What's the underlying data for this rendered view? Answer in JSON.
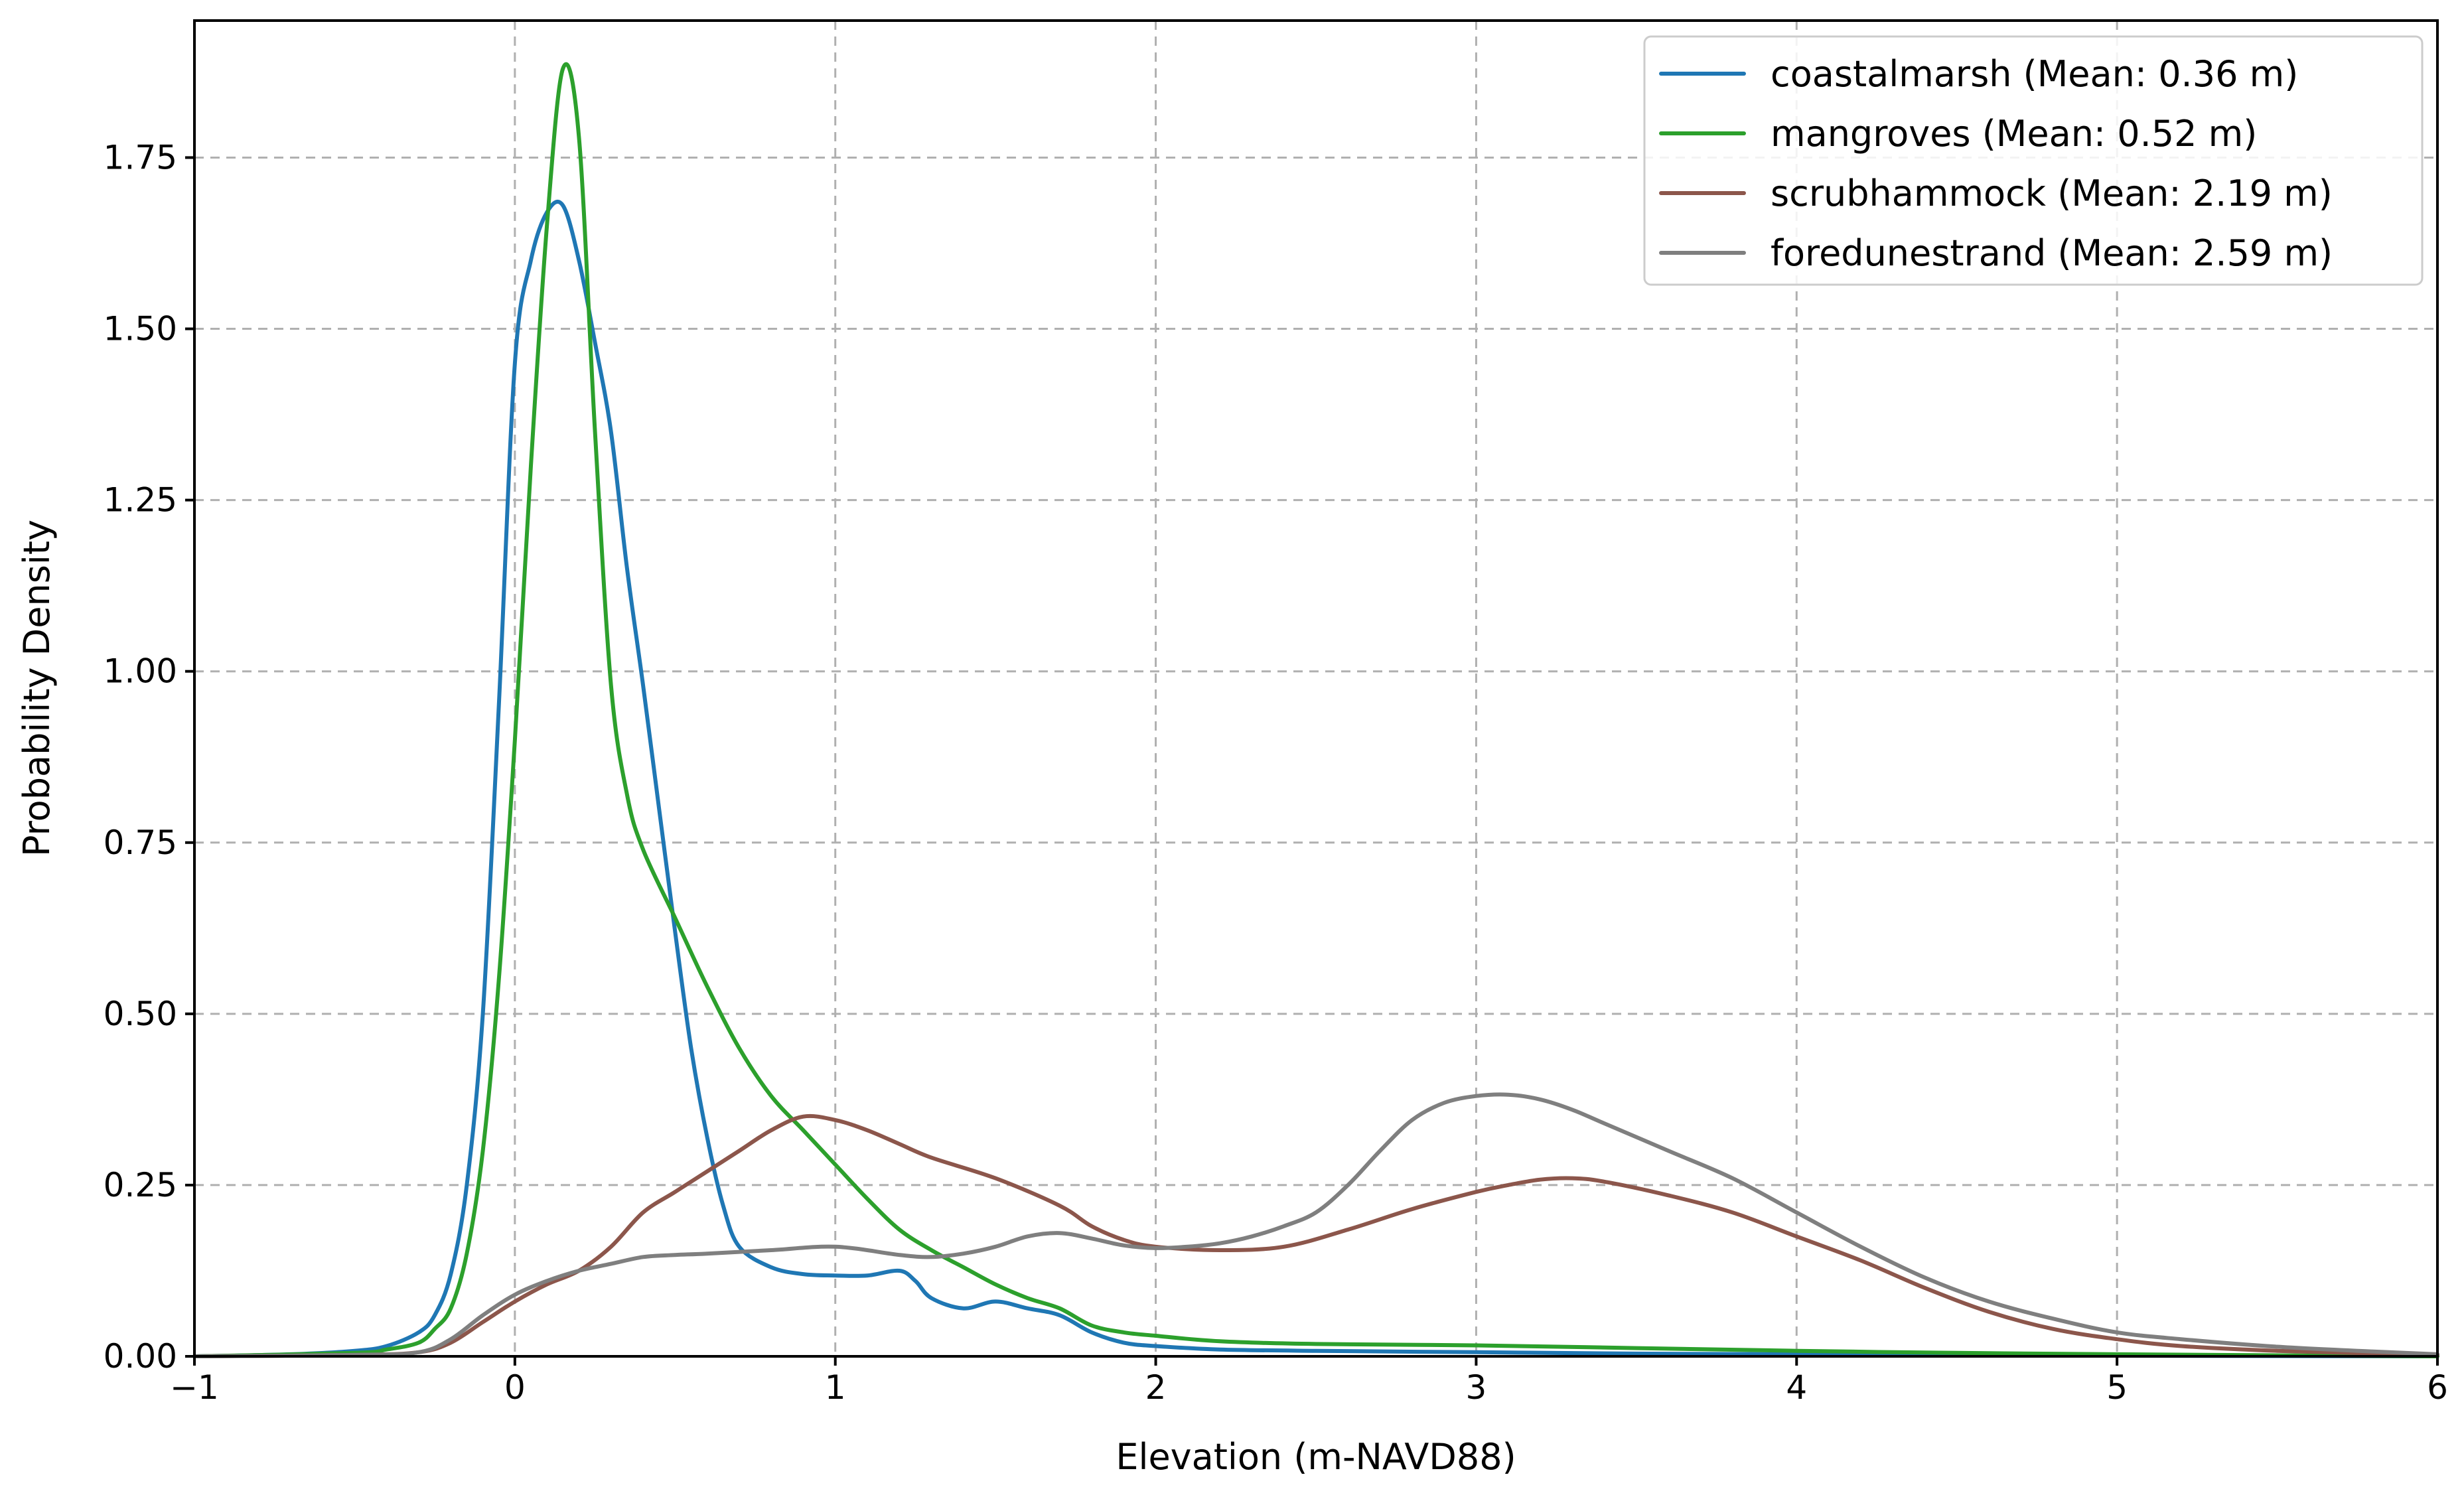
{
  "chart_data": {
    "type": "line",
    "title": "",
    "xlabel": "Elevation (m-NAVD88)",
    "ylabel": "Probability Density",
    "xlim": [
      -1,
      6
    ],
    "ylim": [
      0,
      1.95
    ],
    "xticks": [
      -1,
      0,
      1,
      2,
      3,
      4,
      5,
      6
    ],
    "xtick_labels": [
      "−1",
      "0",
      "1",
      "2",
      "3",
      "4",
      "5",
      "6"
    ],
    "yticks": [
      0,
      0.25,
      0.5,
      0.75,
      1.0,
      1.25,
      1.5,
      1.75
    ],
    "ytick_labels": [
      "0.00",
      "0.25",
      "0.50",
      "0.75",
      "1.00",
      "1.25",
      "1.50",
      "1.75"
    ],
    "grid": true,
    "legend_position": "top-right",
    "series": [
      {
        "name": "coastalmarsh (Mean: 0.36 m)",
        "color": "#1f77b4",
        "points": [
          [
            -1,
            0
          ],
          [
            -0.7,
            0.003
          ],
          [
            -0.5,
            0.008
          ],
          [
            -0.4,
            0.015
          ],
          [
            -0.3,
            0.035
          ],
          [
            -0.25,
            0.06
          ],
          [
            -0.2,
            0.12
          ],
          [
            -0.15,
            0.25
          ],
          [
            -0.1,
            0.5
          ],
          [
            -0.05,
            0.95
          ],
          [
            0,
            1.45
          ],
          [
            0.05,
            1.6
          ],
          [
            0.1,
            1.67
          ],
          [
            0.15,
            1.68
          ],
          [
            0.2,
            1.6
          ],
          [
            0.25,
            1.48
          ],
          [
            0.3,
            1.35
          ],
          [
            0.35,
            1.15
          ],
          [
            0.4,
            0.98
          ],
          [
            0.45,
            0.8
          ],
          [
            0.5,
            0.62
          ],
          [
            0.55,
            0.45
          ],
          [
            0.6,
            0.32
          ],
          [
            0.65,
            0.22
          ],
          [
            0.7,
            0.16
          ],
          [
            0.8,
            0.13
          ],
          [
            0.9,
            0.12
          ],
          [
            1.0,
            0.118
          ],
          [
            1.1,
            0.118
          ],
          [
            1.2,
            0.125
          ],
          [
            1.25,
            0.11
          ],
          [
            1.3,
            0.085
          ],
          [
            1.4,
            0.07
          ],
          [
            1.5,
            0.08
          ],
          [
            1.6,
            0.07
          ],
          [
            1.7,
            0.06
          ],
          [
            1.8,
            0.035
          ],
          [
            1.9,
            0.02
          ],
          [
            2.0,
            0.015
          ],
          [
            2.2,
            0.01
          ],
          [
            2.5,
            0.008
          ],
          [
            3.0,
            0.006
          ],
          [
            3.5,
            0.004
          ],
          [
            4.0,
            0.003
          ],
          [
            5.0,
            0.001
          ],
          [
            6.0,
            0
          ]
        ]
      },
      {
        "name": "mangroves (Mean: 0.52 m)",
        "color": "#2ca02c",
        "points": [
          [
            -1,
            0
          ],
          [
            -0.5,
            0.005
          ],
          [
            -0.4,
            0.01
          ],
          [
            -0.3,
            0.02
          ],
          [
            -0.25,
            0.04
          ],
          [
            -0.2,
            0.07
          ],
          [
            -0.15,
            0.15
          ],
          [
            -0.1,
            0.3
          ],
          [
            -0.05,
            0.55
          ],
          [
            0,
            0.9
          ],
          [
            0.05,
            1.3
          ],
          [
            0.1,
            1.65
          ],
          [
            0.15,
            1.88
          ],
          [
            0.2,
            1.78
          ],
          [
            0.25,
            1.35
          ],
          [
            0.3,
            0.98
          ],
          [
            0.35,
            0.82
          ],
          [
            0.4,
            0.74
          ],
          [
            0.5,
            0.64
          ],
          [
            0.6,
            0.54
          ],
          [
            0.7,
            0.45
          ],
          [
            0.8,
            0.38
          ],
          [
            0.9,
            0.33
          ],
          [
            1.0,
            0.28
          ],
          [
            1.1,
            0.23
          ],
          [
            1.2,
            0.185
          ],
          [
            1.3,
            0.155
          ],
          [
            1.4,
            0.13
          ],
          [
            1.5,
            0.105
          ],
          [
            1.6,
            0.085
          ],
          [
            1.7,
            0.07
          ],
          [
            1.8,
            0.045
          ],
          [
            1.9,
            0.035
          ],
          [
            2.0,
            0.03
          ],
          [
            2.2,
            0.022
          ],
          [
            2.5,
            0.018
          ],
          [
            3.0,
            0.016
          ],
          [
            3.5,
            0.012
          ],
          [
            4.0,
            0.008
          ],
          [
            4.5,
            0.005
          ],
          [
            5.0,
            0.003
          ],
          [
            6.0,
            0
          ]
        ]
      },
      {
        "name": "scrubhammock (Mean: 2.19 m)",
        "color": "#8c564b",
        "points": [
          [
            -1,
            0
          ],
          [
            -0.5,
            0.002
          ],
          [
            -0.3,
            0.006
          ],
          [
            -0.2,
            0.02
          ],
          [
            -0.1,
            0.05
          ],
          [
            0,
            0.08
          ],
          [
            0.1,
            0.105
          ],
          [
            0.2,
            0.125
          ],
          [
            0.3,
            0.16
          ],
          [
            0.4,
            0.21
          ],
          [
            0.5,
            0.24
          ],
          [
            0.6,
            0.27
          ],
          [
            0.7,
            0.3
          ],
          [
            0.8,
            0.33
          ],
          [
            0.9,
            0.35
          ],
          [
            1.0,
            0.345
          ],
          [
            1.1,
            0.33
          ],
          [
            1.2,
            0.31
          ],
          [
            1.3,
            0.29
          ],
          [
            1.5,
            0.26
          ],
          [
            1.7,
            0.22
          ],
          [
            1.8,
            0.19
          ],
          [
            1.9,
            0.17
          ],
          [
            2.0,
            0.16
          ],
          [
            2.2,
            0.155
          ],
          [
            2.4,
            0.16
          ],
          [
            2.6,
            0.185
          ],
          [
            2.8,
            0.215
          ],
          [
            3.0,
            0.24
          ],
          [
            3.1,
            0.25
          ],
          [
            3.2,
            0.258
          ],
          [
            3.3,
            0.26
          ],
          [
            3.4,
            0.255
          ],
          [
            3.6,
            0.235
          ],
          [
            3.8,
            0.21
          ],
          [
            4.0,
            0.175
          ],
          [
            4.2,
            0.14
          ],
          [
            4.4,
            0.1
          ],
          [
            4.6,
            0.065
          ],
          [
            4.8,
            0.04
          ],
          [
            5.0,
            0.025
          ],
          [
            5.2,
            0.015
          ],
          [
            5.5,
            0.008
          ],
          [
            6.0,
            0.002
          ]
        ]
      },
      {
        "name": "foredunestrand (Mean: 2.59 m)",
        "color": "#7f7f7f",
        "points": [
          [
            -1,
            0
          ],
          [
            -0.5,
            0.002
          ],
          [
            -0.3,
            0.006
          ],
          [
            -0.2,
            0.025
          ],
          [
            -0.1,
            0.06
          ],
          [
            0,
            0.09
          ],
          [
            0.1,
            0.11
          ],
          [
            0.2,
            0.125
          ],
          [
            0.3,
            0.135
          ],
          [
            0.4,
            0.145
          ],
          [
            0.5,
            0.148
          ],
          [
            0.6,
            0.15
          ],
          [
            0.8,
            0.155
          ],
          [
            1.0,
            0.16
          ],
          [
            1.2,
            0.148
          ],
          [
            1.3,
            0.145
          ],
          [
            1.4,
            0.15
          ],
          [
            1.5,
            0.16
          ],
          [
            1.6,
            0.175
          ],
          [
            1.7,
            0.18
          ],
          [
            1.8,
            0.172
          ],
          [
            1.9,
            0.162
          ],
          [
            2.0,
            0.158
          ],
          [
            2.1,
            0.16
          ],
          [
            2.2,
            0.165
          ],
          [
            2.3,
            0.175
          ],
          [
            2.4,
            0.19
          ],
          [
            2.5,
            0.21
          ],
          [
            2.6,
            0.25
          ],
          [
            2.7,
            0.3
          ],
          [
            2.8,
            0.345
          ],
          [
            2.9,
            0.37
          ],
          [
            3.0,
            0.38
          ],
          [
            3.1,
            0.382
          ],
          [
            3.2,
            0.375
          ],
          [
            3.3,
            0.36
          ],
          [
            3.4,
            0.34
          ],
          [
            3.6,
            0.3
          ],
          [
            3.8,
            0.26
          ],
          [
            4.0,
            0.21
          ],
          [
            4.2,
            0.16
          ],
          [
            4.4,
            0.115
          ],
          [
            4.6,
            0.08
          ],
          [
            4.8,
            0.055
          ],
          [
            5.0,
            0.035
          ],
          [
            5.2,
            0.025
          ],
          [
            5.5,
            0.014
          ],
          [
            5.8,
            0.007
          ],
          [
            6.0,
            0.003
          ]
        ]
      }
    ]
  }
}
